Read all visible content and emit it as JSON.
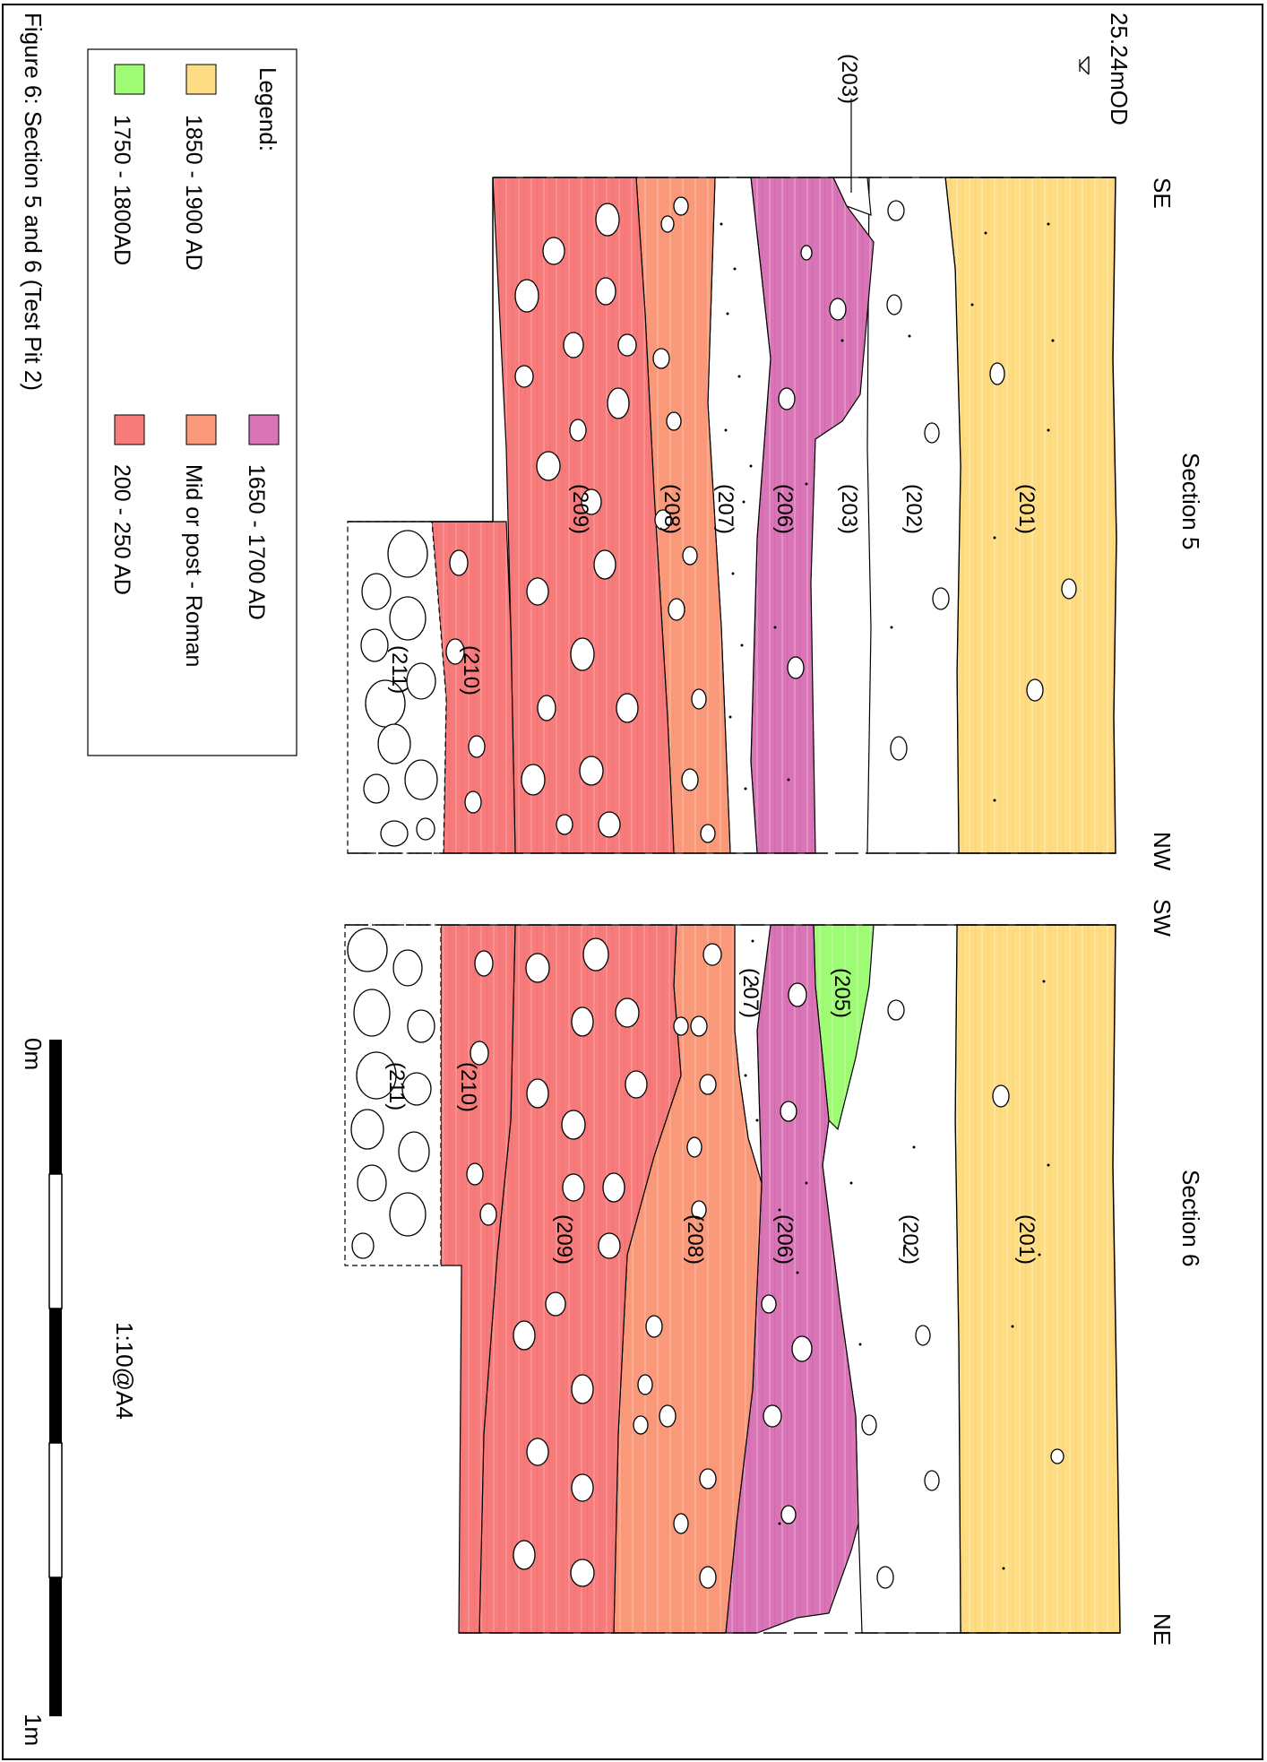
{
  "figure": {
    "caption": "Figure 6: Section 5 and 6 (Test Pit 2)",
    "datum": "25.24mOD",
    "scale_ratio": "1:10@A4",
    "scale_start": "0m",
    "scale_end": "1m"
  },
  "legend": {
    "title": "Legend:",
    "items": [
      {
        "label": "1850 - 1900 AD",
        "color": "#fddc84"
      },
      {
        "label": "1750 - 1800AD",
        "color": "#9efc74"
      },
      {
        "label": "1650 - 1700 AD",
        "color": "#d975b7"
      },
      {
        "label": "Mid or post - Roman",
        "color": "#f9997a"
      },
      {
        "label": "200 - 250 AD",
        "color": "#f87b7b"
      }
    ]
  },
  "section5": {
    "title": "Section 5",
    "end_a": "SE",
    "end_b": "NW",
    "contexts": [
      "(201)",
      "(202)",
      "(203)",
      "(206)",
      "(207)",
      "(208)",
      "(209)",
      "(210)",
      "(211)"
    ],
    "callout": "(203)"
  },
  "section6": {
    "title": "Section 6",
    "end_a": "SW",
    "end_b": "NE",
    "contexts": [
      "(201)",
      "(202)",
      "(205)",
      "(206)",
      "(207)",
      "(208)",
      "(209)",
      "(210)",
      "(211)"
    ]
  },
  "colors": {
    "yellow": "#fddc84",
    "green": "#9efc74",
    "purple": "#d975b7",
    "orange": "#f9997a",
    "red": "#f87b7b"
  }
}
